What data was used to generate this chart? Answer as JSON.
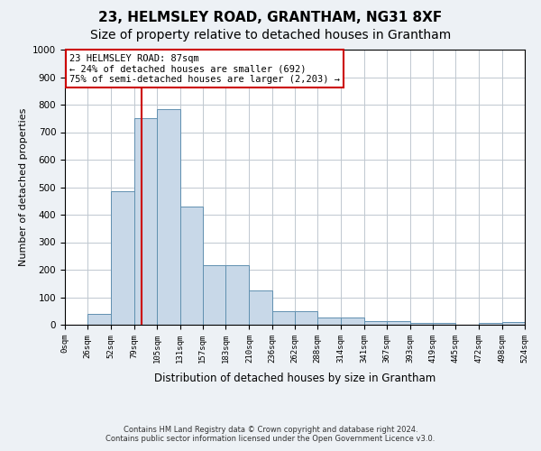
{
  "title": "23, HELMSLEY ROAD, GRANTHAM, NG31 8XF",
  "subtitle": "Size of property relative to detached houses in Grantham",
  "xlabel": "Distribution of detached houses by size in Grantham",
  "ylabel": "Number of detached properties",
  "footer_line1": "Contains HM Land Registry data © Crown copyright and database right 2024.",
  "footer_line2": "Contains public sector information licensed under the Open Government Licence v3.0.",
  "bar_edges": [
    0,
    26,
    52,
    79,
    105,
    131,
    157,
    183,
    210,
    236,
    262,
    288,
    314,
    341,
    367,
    393,
    419,
    445,
    472,
    498,
    524
  ],
  "bar_heights": [
    0,
    40,
    485,
    750,
    785,
    430,
    215,
    215,
    125,
    50,
    50,
    25,
    25,
    12,
    12,
    8,
    8,
    0,
    5,
    10
  ],
  "bar_color": "#c8d8e8",
  "bar_edge_color": "#6090b0",
  "red_line_x": 87,
  "annotation_text": "23 HELMSLEY ROAD: 87sqm\n← 24% of detached houses are smaller (692)\n75% of semi-detached houses are larger (2,203) →",
  "annotation_box_color": "#ffffff",
  "annotation_box_edge_color": "#cc0000",
  "ylim": [
    0,
    1000
  ],
  "yticks": [
    0,
    100,
    200,
    300,
    400,
    500,
    600,
    700,
    800,
    900,
    1000
  ],
  "tick_labels": [
    "0sqm",
    "26sqm",
    "52sqm",
    "79sqm",
    "105sqm",
    "131sqm",
    "157sqm",
    "183sqm",
    "210sqm",
    "236sqm",
    "262sqm",
    "288sqm",
    "314sqm",
    "341sqm",
    "367sqm",
    "393sqm",
    "419sqm",
    "445sqm",
    "472sqm",
    "498sqm",
    "524sqm"
  ],
  "background_color": "#edf1f5",
  "plot_background_color": "#ffffff",
  "grid_color": "#c0c8d0",
  "title_fontsize": 11,
  "subtitle_fontsize": 10
}
